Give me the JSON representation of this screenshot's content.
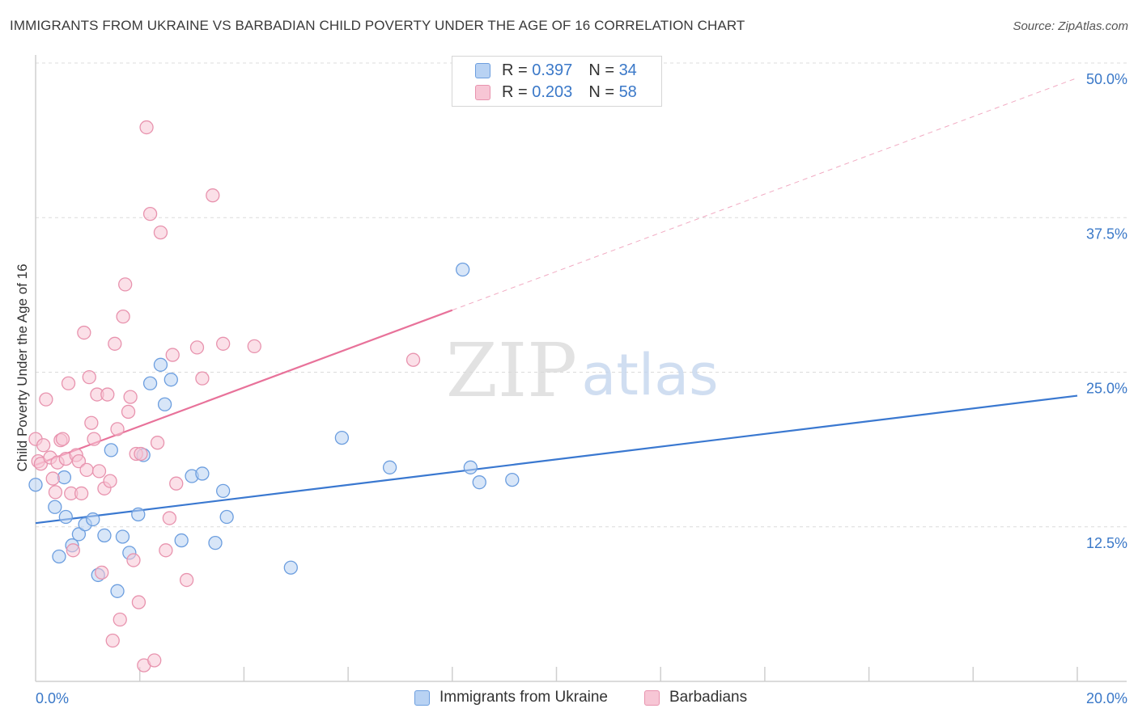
{
  "title": "IMMIGRANTS FROM UKRAINE VS BARBADIAN CHILD POVERTY UNDER THE AGE OF 16 CORRELATION CHART",
  "source": "Source: ZipAtlas.com",
  "watermark": {
    "zip": "ZIP",
    "atlas": "atlas"
  },
  "legend_top": [
    {
      "r_label": "R =",
      "r_value": "0.397",
      "n_label": "N =",
      "n_value": "34"
    },
    {
      "r_label": "R =",
      "r_value": "0.203",
      "n_label": "N =",
      "n_value": "58"
    }
  ],
  "colors": {
    "blue_fill": "#b8d2f3",
    "blue_stroke": "#6c9edf",
    "blue_line": "#3a78d0",
    "pink_fill": "#f7c6d5",
    "pink_stroke": "#e893ae",
    "pink_line": "#e8729a",
    "tick_label": "#3a78c8",
    "grid": "#dcdcdc"
  },
  "chart_data": {
    "type": "scatter",
    "xlabel": "",
    "ylabel": "Child Poverty Under the Age of 16",
    "xlim": [
      0,
      20
    ],
    "ylim": [
      0,
      50
    ],
    "x_ticks": [
      {
        "value": 0,
        "label": "0.0%"
      },
      {
        "value": 20,
        "label": "20.0%"
      }
    ],
    "x_minor_ticks": [
      2,
      4,
      6,
      8,
      10,
      12,
      14,
      16,
      18,
      20
    ],
    "y_ticks": [
      {
        "value": 12.5,
        "label": "12.5%"
      },
      {
        "value": 25,
        "label": "25.0%"
      },
      {
        "value": 37.5,
        "label": "37.5%"
      },
      {
        "value": 50,
        "label": "50.0%"
      }
    ],
    "grid": true,
    "legend_position": "bottom",
    "series": [
      {
        "name": "Immigrants from Ukraine",
        "color_key": "blue",
        "trend": {
          "x0": 0,
          "y0": 12.8,
          "x1": 20,
          "y1": 23.1,
          "solid_to": 20
        },
        "points": [
          [
            0.0,
            15.9
          ],
          [
            0.37,
            14.1
          ],
          [
            0.45,
            10.1
          ],
          [
            0.55,
            16.5
          ],
          [
            0.58,
            13.3
          ],
          [
            0.7,
            11.0
          ],
          [
            0.83,
            11.9
          ],
          [
            0.95,
            12.7
          ],
          [
            1.1,
            13.1
          ],
          [
            1.2,
            8.6
          ],
          [
            1.32,
            11.8
          ],
          [
            1.45,
            18.7
          ],
          [
            1.57,
            7.3
          ],
          [
            1.67,
            11.7
          ],
          [
            1.8,
            10.4
          ],
          [
            1.97,
            13.5
          ],
          [
            2.07,
            18.3
          ],
          [
            2.2,
            24.1
          ],
          [
            2.4,
            25.6
          ],
          [
            2.48,
            22.4
          ],
          [
            2.6,
            24.4
          ],
          [
            2.8,
            11.4
          ],
          [
            3.0,
            16.6
          ],
          [
            3.2,
            16.8
          ],
          [
            3.45,
            11.2
          ],
          [
            3.6,
            15.4
          ],
          [
            3.67,
            13.3
          ],
          [
            4.9,
            9.2
          ],
          [
            5.88,
            19.7
          ],
          [
            6.8,
            17.3
          ],
          [
            8.2,
            33.3
          ],
          [
            8.35,
            17.3
          ],
          [
            8.52,
            16.1
          ],
          [
            9.15,
            16.3
          ]
        ]
      },
      {
        "name": "Barbadians",
        "color_key": "pink",
        "trend": {
          "x0": 0,
          "y0": 17.5,
          "x1": 20,
          "y1": 48.8,
          "solid_to": 8.0
        },
        "points": [
          [
            0.0,
            19.6
          ],
          [
            0.05,
            17.8
          ],
          [
            0.1,
            17.6
          ],
          [
            0.15,
            19.1
          ],
          [
            0.2,
            22.8
          ],
          [
            0.28,
            18.1
          ],
          [
            0.33,
            16.4
          ],
          [
            0.38,
            15.3
          ],
          [
            0.42,
            17.7
          ],
          [
            0.48,
            19.5
          ],
          [
            0.52,
            19.6
          ],
          [
            0.58,
            18.0
          ],
          [
            0.63,
            24.1
          ],
          [
            0.68,
            15.2
          ],
          [
            0.72,
            10.6
          ],
          [
            0.78,
            18.3
          ],
          [
            0.83,
            17.8
          ],
          [
            0.88,
            15.2
          ],
          [
            0.93,
            28.2
          ],
          [
            0.98,
            17.1
          ],
          [
            1.03,
            24.6
          ],
          [
            1.07,
            20.9
          ],
          [
            1.12,
            19.6
          ],
          [
            1.18,
            23.2
          ],
          [
            1.22,
            17.0
          ],
          [
            1.27,
            8.8
          ],
          [
            1.32,
            15.6
          ],
          [
            1.38,
            23.2
          ],
          [
            1.43,
            16.2
          ],
          [
            1.48,
            3.3
          ],
          [
            1.52,
            27.3
          ],
          [
            1.57,
            20.4
          ],
          [
            1.62,
            5.0
          ],
          [
            1.68,
            29.5
          ],
          [
            1.72,
            32.1
          ],
          [
            1.78,
            21.8
          ],
          [
            1.82,
            23.0
          ],
          [
            1.88,
            9.8
          ],
          [
            1.93,
            18.4
          ],
          [
            1.98,
            6.4
          ],
          [
            2.02,
            18.4
          ],
          [
            2.08,
            1.3
          ],
          [
            2.13,
            44.8
          ],
          [
            2.2,
            37.8
          ],
          [
            2.28,
            1.7
          ],
          [
            2.34,
            19.3
          ],
          [
            2.4,
            36.3
          ],
          [
            2.5,
            10.6
          ],
          [
            2.57,
            13.2
          ],
          [
            2.63,
            26.4
          ],
          [
            2.7,
            16.0
          ],
          [
            2.9,
            8.2
          ],
          [
            3.1,
            27.0
          ],
          [
            3.2,
            24.5
          ],
          [
            3.4,
            39.3
          ],
          [
            3.6,
            27.3
          ],
          [
            4.2,
            27.1
          ],
          [
            7.25,
            26.0
          ]
        ]
      }
    ]
  },
  "legend_bottom": [
    {
      "label": "Immigrants from Ukraine",
      "color_key": "blue"
    },
    {
      "label": "Barbadians",
      "color_key": "pink"
    }
  ]
}
